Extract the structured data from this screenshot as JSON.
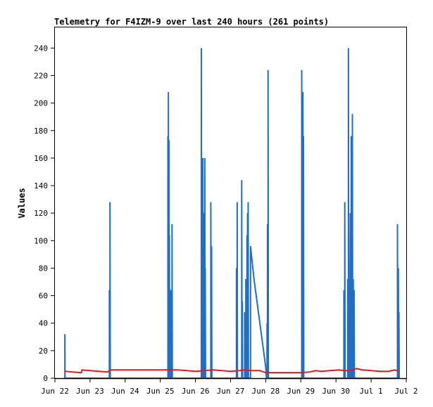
{
  "chart_data": {
    "type": "line",
    "title": "Telemetry for F4IZM-9 over last 240 hours (261 points)",
    "xlabel": "",
    "ylabel": "Values",
    "ylim": [
      0,
      255
    ],
    "xlim": [
      0,
      240
    ],
    "y_ticks": [
      0,
      20,
      40,
      60,
      80,
      100,
      120,
      140,
      160,
      180,
      200,
      220,
      240
    ],
    "x_ticks": [
      {
        "label": "Jun 22",
        "x": 0
      },
      {
        "label": "Jun 23",
        "x": 24
      },
      {
        "label": "Jun 24",
        "x": 48
      },
      {
        "label": "Jun 25",
        "x": 72
      },
      {
        "label": "Jun 26",
        "x": 96
      },
      {
        "label": "Jun 27",
        "x": 120
      },
      {
        "label": "Jun 28",
        "x": 144
      },
      {
        "label": "Jun 29",
        "x": 168
      },
      {
        "label": "Jun 30",
        "x": 192
      },
      {
        "label": "Jul 1",
        "x": 216
      },
      {
        "label": "Jul 2",
        "x": 240
      }
    ],
    "grid": false,
    "colors": {
      "blue": "#1f6fc6",
      "red": "#e01b1b",
      "baseline": "#000000"
    },
    "series": [
      {
        "color": "#1f6fc6",
        "points": [
          [
            6.8,
            0
          ],
          [
            6.8,
            32
          ],
          [
            6.9,
            0
          ],
          [
            37.2,
            0
          ],
          [
            37.2,
            64
          ],
          [
            37.4,
            0
          ],
          [
            37.6,
            0
          ],
          [
            37.6,
            128
          ],
          [
            37.8,
            0
          ],
          [
            77.2,
            0
          ],
          [
            77.2,
            176
          ],
          [
            77.4,
            0
          ],
          [
            77.5,
            0
          ],
          [
            77.5,
            208
          ],
          [
            77.7,
            0
          ],
          [
            77.9,
            0
          ],
          [
            77.9,
            173
          ],
          [
            78.1,
            0
          ],
          [
            78.2,
            0
          ],
          [
            78.2,
            104
          ],
          [
            78.4,
            0
          ],
          [
            78.6,
            0
          ],
          [
            78.6,
            36
          ],
          [
            78.8,
            0
          ],
          [
            79.2,
            0
          ],
          [
            79.2,
            64
          ],
          [
            79.4,
            0
          ],
          [
            80.0,
            0
          ],
          [
            80.0,
            112
          ],
          [
            80.2,
            0
          ],
          [
            100.0,
            0
          ],
          [
            100.0,
            240
          ],
          [
            100.2,
            0
          ],
          [
            100.6,
            0
          ],
          [
            100.6,
            80
          ],
          [
            100.8,
            0
          ],
          [
            101.0,
            0
          ],
          [
            101.0,
            160
          ],
          [
            101.2,
            0
          ],
          [
            101.6,
            0
          ],
          [
            101.6,
            40
          ],
          [
            101.8,
            0
          ],
          [
            102.0,
            0
          ],
          [
            102.0,
            120
          ],
          [
            102.2,
            0
          ],
          [
            102.4,
            0
          ],
          [
            102.4,
            160
          ],
          [
            102.6,
            0
          ],
          [
            102.7,
            0
          ],
          [
            102.7,
            80
          ],
          [
            102.9,
            0
          ],
          [
            106.5,
            0
          ],
          [
            106.5,
            128
          ],
          [
            106.7,
            0
          ],
          [
            107.0,
            0
          ],
          [
            107.0,
            96
          ],
          [
            107.2,
            0
          ],
          [
            124.0,
            0
          ],
          [
            124.0,
            80
          ],
          [
            124.2,
            0
          ],
          [
            124.5,
            0
          ],
          [
            124.5,
            128
          ],
          [
            124.7,
            0
          ],
          [
            127.6,
            0
          ],
          [
            127.6,
            144
          ],
          [
            127.8,
            0
          ],
          [
            128.0,
            0
          ],
          [
            128.0,
            56
          ],
          [
            128.2,
            0
          ],
          [
            129.6,
            0
          ],
          [
            129.6,
            48
          ],
          [
            129.8,
            0
          ],
          [
            130.4,
            0
          ],
          [
            130.4,
            72
          ],
          [
            130.6,
            0
          ],
          [
            131.2,
            0
          ],
          [
            131.2,
            104
          ],
          [
            131.4,
            0
          ],
          [
            131.6,
            0
          ],
          [
            131.6,
            120
          ],
          [
            131.8,
            0
          ],
          [
            132.0,
            0
          ],
          [
            132.0,
            128
          ],
          [
            132.2,
            0
          ],
          [
            133.6,
            0
          ],
          [
            133.6,
            96
          ],
          [
            134.4,
            88
          ],
          [
            136.0,
            72
          ],
          [
            138.0,
            56
          ],
          [
            140.0,
            40
          ],
          [
            142.0,
            24
          ],
          [
            144.0,
            8
          ],
          [
            144.5,
            0
          ],
          [
            144.9,
            0
          ],
          [
            144.9,
            40
          ],
          [
            145.1,
            0
          ],
          [
            145.2,
            0
          ],
          [
            145.2,
            112
          ],
          [
            145.4,
            0
          ],
          [
            145.6,
            0
          ],
          [
            145.6,
            224
          ],
          [
            145.8,
            0
          ],
          [
            168.6,
            0
          ],
          [
            168.6,
            224
          ],
          [
            168.8,
            0
          ],
          [
            169.4,
            0
          ],
          [
            169.4,
            208
          ],
          [
            169.6,
            0
          ],
          [
            169.8,
            0
          ],
          [
            169.8,
            176
          ],
          [
            170.0,
            0
          ],
          [
            197.4,
            0
          ],
          [
            197.4,
            64
          ],
          [
            197.6,
            0
          ],
          [
            198.0,
            0
          ],
          [
            198.0,
            128
          ],
          [
            198.2,
            0
          ],
          [
            200.0,
            0
          ],
          [
            200.0,
            72
          ],
          [
            200.2,
            0
          ],
          [
            200.5,
            0
          ],
          [
            200.5,
            240
          ],
          [
            200.7,
            0
          ],
          [
            201.2,
            0
          ],
          [
            201.2,
            64
          ],
          [
            201.6,
            64
          ],
          [
            201.8,
            120
          ],
          [
            202.0,
            0
          ],
          [
            202.4,
            0
          ],
          [
            202.4,
            176
          ],
          [
            202.6,
            0
          ],
          [
            203.2,
            0
          ],
          [
            203.2,
            192
          ],
          [
            203.4,
            0
          ],
          [
            203.8,
            0
          ],
          [
            203.8,
            72
          ],
          [
            204.0,
            0
          ],
          [
            204.4,
            0
          ],
          [
            204.4,
            64
          ],
          [
            204.6,
            0
          ],
          [
            234.0,
            0
          ],
          [
            234.0,
            112
          ],
          [
            234.2,
            0
          ],
          [
            234.6,
            0
          ],
          [
            234.6,
            80
          ],
          [
            234.8,
            0
          ],
          [
            235.0,
            0
          ],
          [
            235.0,
            48
          ],
          [
            235.2,
            0
          ]
        ]
      },
      {
        "color": "#e01b1b",
        "points": [
          [
            6.8,
            5
          ],
          [
            12,
            4.5
          ],
          [
            18,
            4
          ],
          [
            18.5,
            6
          ],
          [
            24,
            5.5
          ],
          [
            30,
            5
          ],
          [
            36,
            4.5
          ],
          [
            38,
            6
          ],
          [
            48,
            6
          ],
          [
            60,
            6
          ],
          [
            72,
            6
          ],
          [
            84,
            6
          ],
          [
            90,
            5.5
          ],
          [
            96,
            5
          ],
          [
            102,
            5.5
          ],
          [
            108,
            6
          ],
          [
            114,
            5.5
          ],
          [
            120,
            5
          ],
          [
            126,
            5.5
          ],
          [
            130,
            6
          ],
          [
            134,
            5.5
          ],
          [
            140,
            5.5
          ],
          [
            144,
            4
          ],
          [
            150,
            4
          ],
          [
            156,
            4
          ],
          [
            162,
            4
          ],
          [
            168,
            4
          ],
          [
            174,
            4.5
          ],
          [
            178,
            5.5
          ],
          [
            182,
            5
          ],
          [
            188,
            5.5
          ],
          [
            194,
            6
          ],
          [
            198,
            5.5
          ],
          [
            202,
            5.5
          ],
          [
            206,
            7
          ],
          [
            210,
            6
          ],
          [
            216,
            5.5
          ],
          [
            222,
            5
          ],
          [
            228,
            5
          ],
          [
            232,
            6
          ],
          [
            235,
            5
          ]
        ]
      }
    ]
  }
}
